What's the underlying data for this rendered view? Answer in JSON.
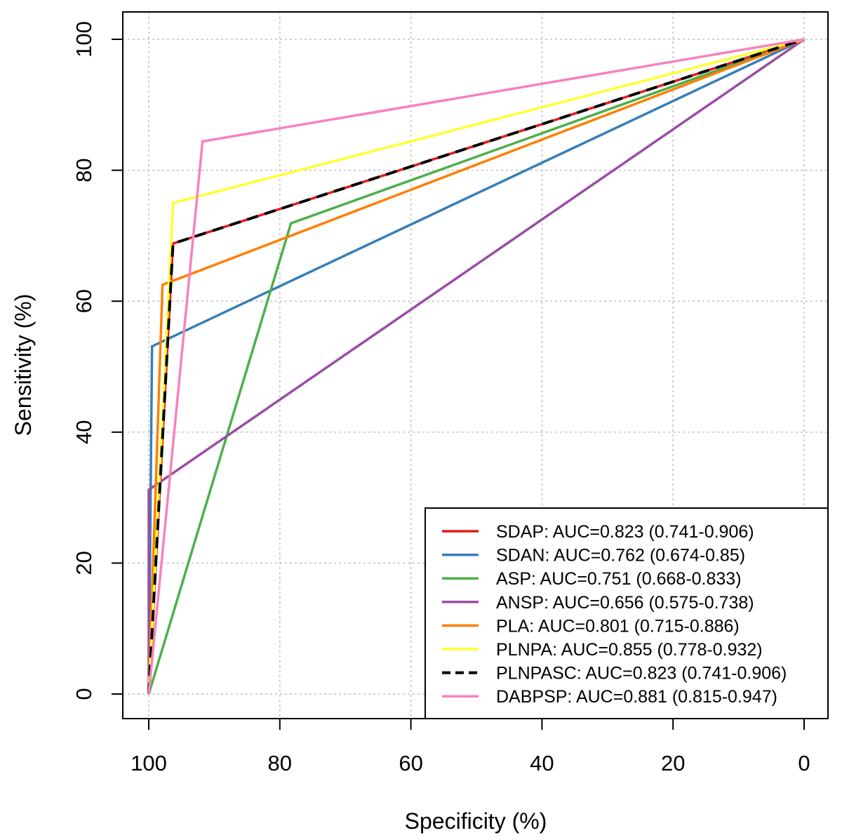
{
  "chart_data": {
    "type": "line",
    "title": "",
    "xlabel": "Specificity (%)",
    "ylabel": "Sensitivity (%)",
    "xlim": [
      100,
      0
    ],
    "ylim": [
      0,
      100
    ],
    "x_ticks": [
      100,
      80,
      60,
      40,
      20,
      0
    ],
    "y_ticks": [
      0,
      20,
      40,
      60,
      80,
      100
    ],
    "x_tick_labels": [
      "100",
      "80",
      "60",
      "40",
      "20",
      "0"
    ],
    "y_tick_labels": [
      "0",
      "20",
      "40",
      "60",
      "80",
      "100"
    ],
    "grid": true,
    "legend_position": "bottom-right",
    "series": [
      {
        "name": "SDAP",
        "label": "SDAP: AUC=0.823 (0.741-0.906)",
        "color": "#e41a1c",
        "dashed": false,
        "x": [
          100,
          96.3,
          0
        ],
        "y": [
          0,
          68.8,
          100
        ]
      },
      {
        "name": "SDAN",
        "label": "SDAN: AUC=0.762 (0.674-0.85)",
        "color": "#377eb8",
        "dashed": false,
        "x": [
          100,
          99.5,
          0
        ],
        "y": [
          0,
          53.1,
          100
        ]
      },
      {
        "name": "ASP",
        "label": "ASP: AUC=0.751 (0.668-0.833)",
        "color": "#4daf4a",
        "dashed": false,
        "x": [
          100,
          78.3,
          0
        ],
        "y": [
          0,
          71.9,
          100
        ]
      },
      {
        "name": "ANSP",
        "label": "ANSP: AUC=0.656 (0.575-0.738)",
        "color": "#984ea3",
        "dashed": false,
        "x": [
          100,
          100,
          0
        ],
        "y": [
          0,
          31.2,
          100
        ]
      },
      {
        "name": "PLA",
        "label": "PLA: AUC=0.801 (0.715-0.886)",
        "color": "#ff7f00",
        "dashed": false,
        "x": [
          100,
          97.9,
          0
        ],
        "y": [
          0,
          62.5,
          100
        ]
      },
      {
        "name": "PLNPA",
        "label": "PLNPA: AUC=0.855 (0.778-0.932)",
        "color": "#ffff33",
        "dashed": false,
        "x": [
          100,
          96.3,
          0
        ],
        "y": [
          0,
          75.0,
          100
        ]
      },
      {
        "name": "PLNPASC",
        "label": "PLNPASC: AUC=0.823 (0.741-0.906)",
        "color": "#000000",
        "dashed": true,
        "x": [
          100,
          96.3,
          0
        ],
        "y": [
          0,
          68.8,
          100
        ]
      },
      {
        "name": "DABPSP",
        "label": "DABPSP: AUC=0.881 (0.815-0.947)",
        "color": "#f781bf",
        "dashed": false,
        "x": [
          100,
          91.8,
          0
        ],
        "y": [
          0,
          84.4,
          100
        ]
      }
    ]
  }
}
